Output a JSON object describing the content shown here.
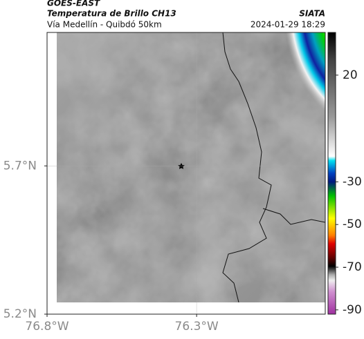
{
  "header": {
    "satellite": "GOES-EAST",
    "product": "Temperatura de Brillo CH13",
    "source": "SIATA",
    "region": "Vía Medellín - Quibdó 50km",
    "datetime": "2024-01-29 18:29"
  },
  "map": {
    "xlim": [
      -76.8,
      -75.87
    ],
    "ylim": [
      5.2,
      6.15
    ],
    "xticks": [
      {
        "value": -76.8,
        "label": "76.8°W"
      },
      {
        "value": -76.3,
        "label": "76.3°W"
      }
    ],
    "yticks": [
      {
        "value": 5.7,
        "label": "5.7°N"
      },
      {
        "value": 5.2,
        "label": "5.2°N"
      }
    ],
    "grid": true
  },
  "colorbar": {
    "lim": [
      -92,
      40
    ],
    "ticks": [
      20,
      -30,
      -50,
      -70,
      -90
    ]
  }
}
